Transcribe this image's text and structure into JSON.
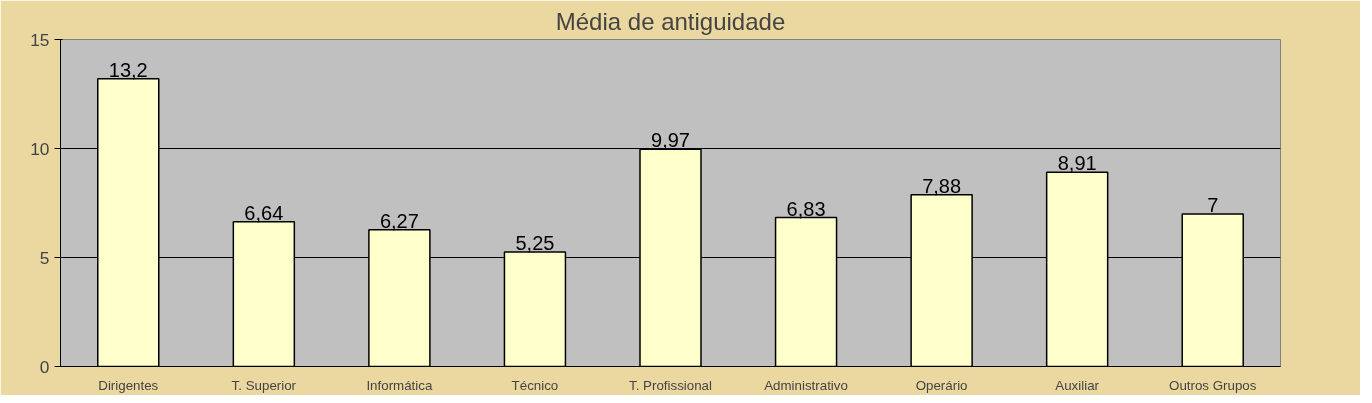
{
  "chart_data": {
    "type": "bar",
    "title": "Média de antiguidade",
    "categories": [
      "Dirigentes",
      "T. Superior",
      "Informática",
      "Técnico",
      "T. Profissional",
      "Administrativo",
      "Operário",
      "Auxiliar",
      "Outros Grupos"
    ],
    "values": [
      13.2,
      6.64,
      6.27,
      5.25,
      9.97,
      6.83,
      7.88,
      8.91,
      7
    ],
    "value_labels": [
      "13,2",
      "6,64",
      "6,27",
      "5,25",
      "9,97",
      "6,83",
      "7,88",
      "8,91",
      "7"
    ],
    "color": "#ffffcc",
    "ylim": [
      0,
      15
    ],
    "yticks": [
      0,
      5,
      10,
      15
    ],
    "grid": "y"
  }
}
